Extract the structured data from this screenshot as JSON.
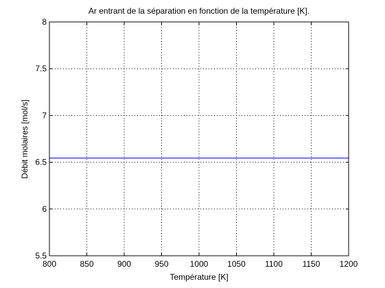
{
  "chart_data": {
    "type": "line",
    "title": "Ar entrant de la séparation en fonction de la température [K].",
    "xlabel": "Température [K]",
    "ylabel": "Débit molaires [mol/s]",
    "xlim": [
      800,
      1200
    ],
    "ylim": [
      5.5,
      8
    ],
    "xticks": [
      800,
      850,
      900,
      950,
      1000,
      1050,
      1100,
      1150,
      1200
    ],
    "yticks": [
      5.5,
      6,
      6.5,
      7,
      7.5,
      8
    ],
    "xtick_labels": [
      "800",
      "850",
      "900",
      "950",
      "1000",
      "1050",
      "1100",
      "1150",
      "1200"
    ],
    "ytick_labels": [
      "5.5",
      "6",
      "6.5",
      "7",
      "7.5",
      "8"
    ],
    "grid": true,
    "series": [
      {
        "name": "Ar",
        "color": "#0000ff",
        "x": [
          800,
          1200
        ],
        "y": [
          6.545,
          6.545
        ]
      }
    ]
  }
}
